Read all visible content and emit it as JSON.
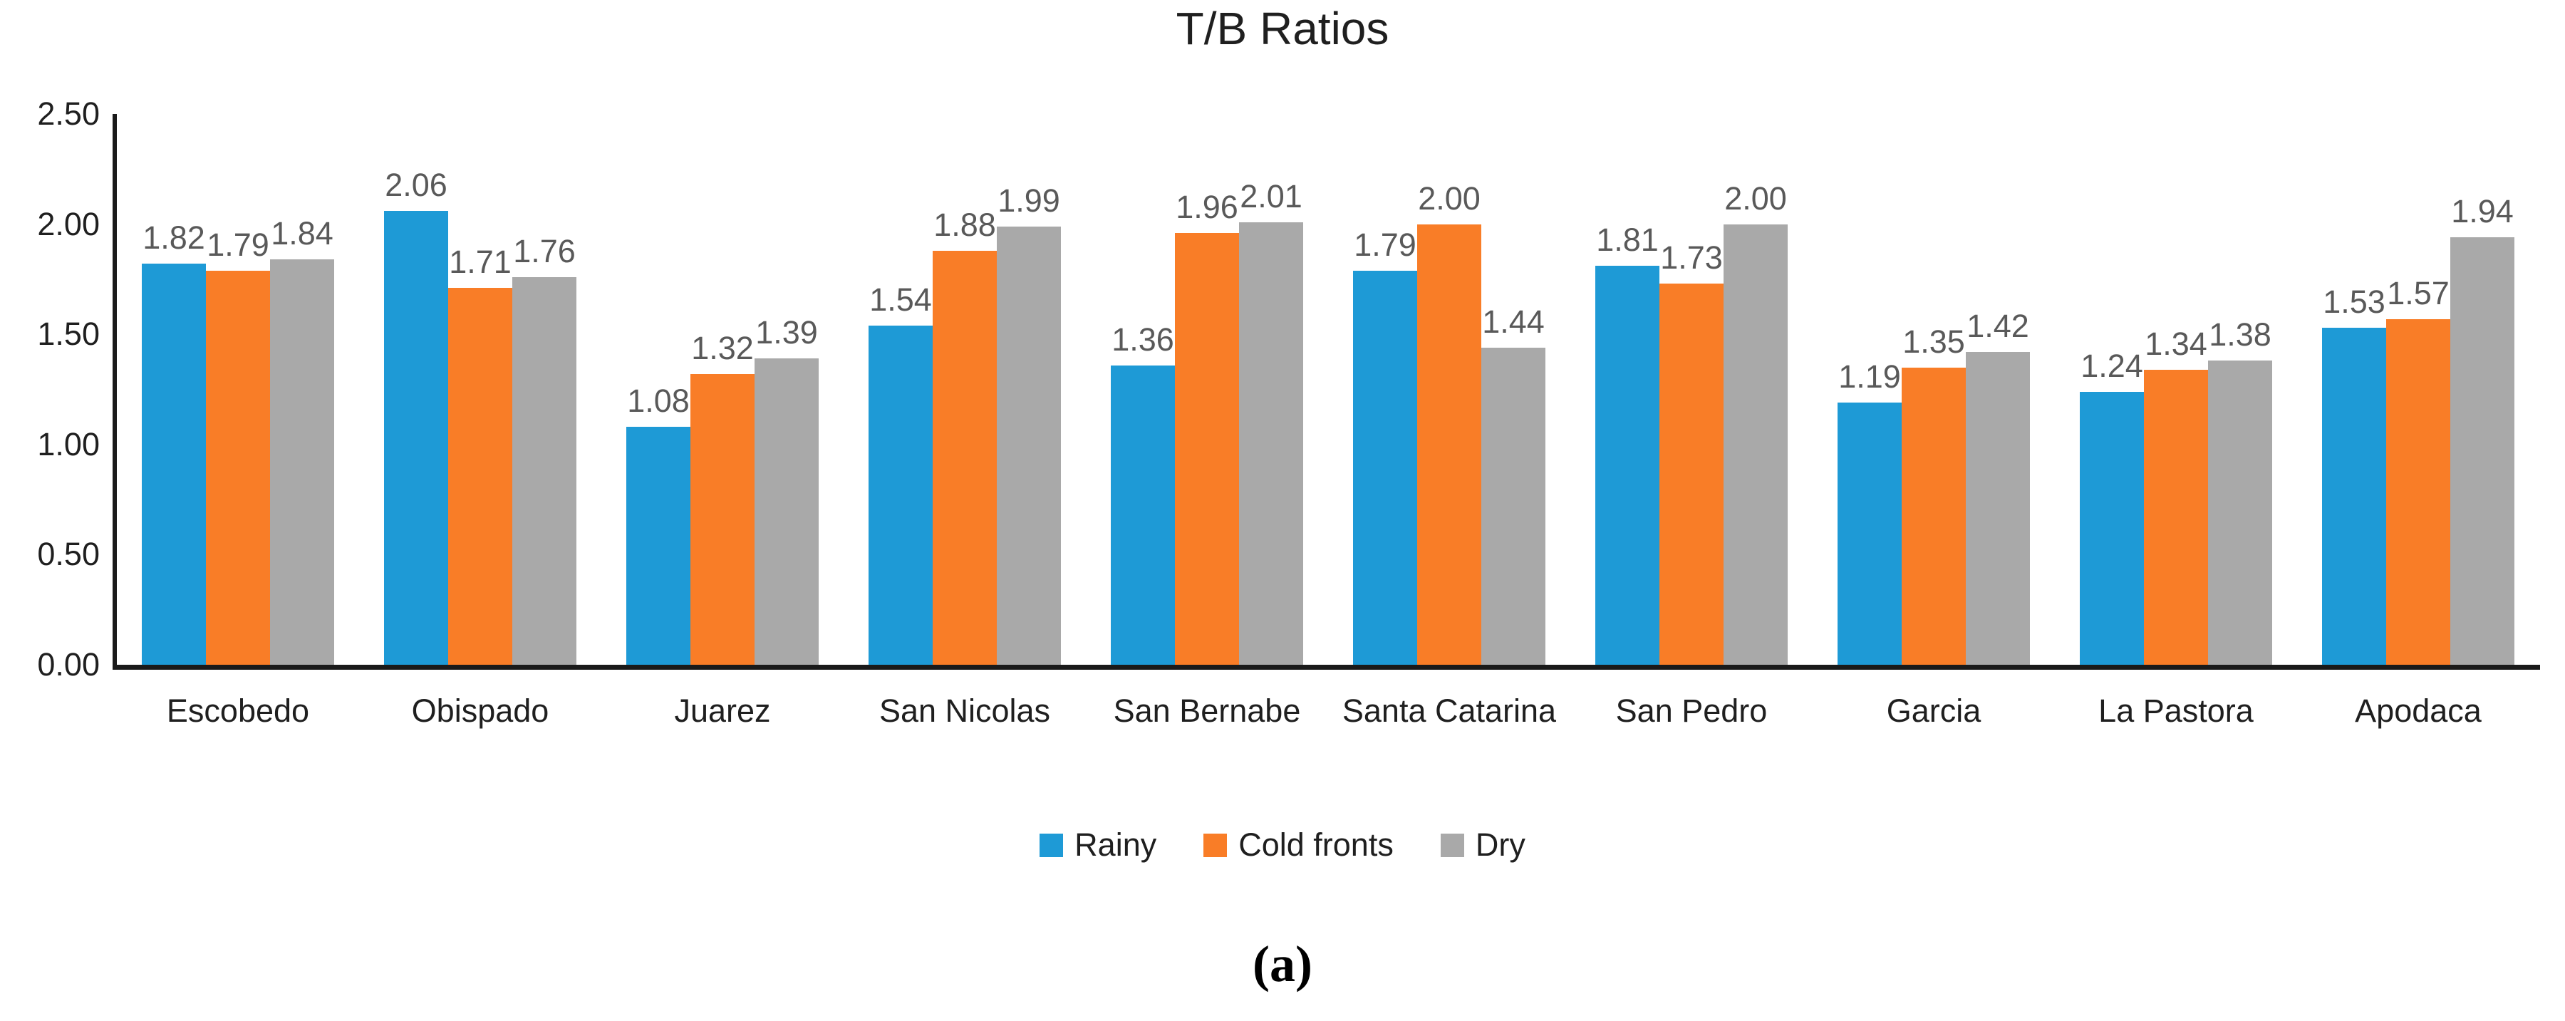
{
  "figure": {
    "caption": "(a)"
  },
  "chart_data": {
    "type": "bar",
    "title": "T/B Ratios",
    "xlabel": "",
    "ylabel": "",
    "ylim": [
      0,
      2.5
    ],
    "ytick_labels": [
      "0.00",
      "0.50",
      "1.00",
      "1.50",
      "2.00",
      "2.50"
    ],
    "grid": false,
    "legend_position": "bottom",
    "value_label_color": "#595959",
    "axis_color": "#1a1a1a",
    "categories": [
      "Escobedo",
      "Obispado",
      "Juarez",
      "San Nicolas",
      "San Bernabe",
      "Santa Catarina",
      "San Pedro",
      "Garcia",
      "La Pastora",
      "Apodaca"
    ],
    "series": [
      {
        "name": "Rainy",
        "color": "#1E9AD6",
        "values": [
          1.82,
          2.06,
          1.08,
          1.54,
          1.36,
          1.79,
          1.81,
          1.19,
          1.24,
          1.53
        ]
      },
      {
        "name": "Cold fronts",
        "color": "#F97D27",
        "values": [
          1.79,
          1.71,
          1.32,
          1.88,
          1.96,
          2.0,
          1.73,
          1.35,
          1.34,
          1.57
        ]
      },
      {
        "name": "Dry",
        "color": "#A9A9A9",
        "values": [
          1.84,
          1.76,
          1.39,
          1.99,
          2.01,
          1.44,
          2.0,
          1.42,
          1.38,
          1.94
        ]
      }
    ]
  }
}
